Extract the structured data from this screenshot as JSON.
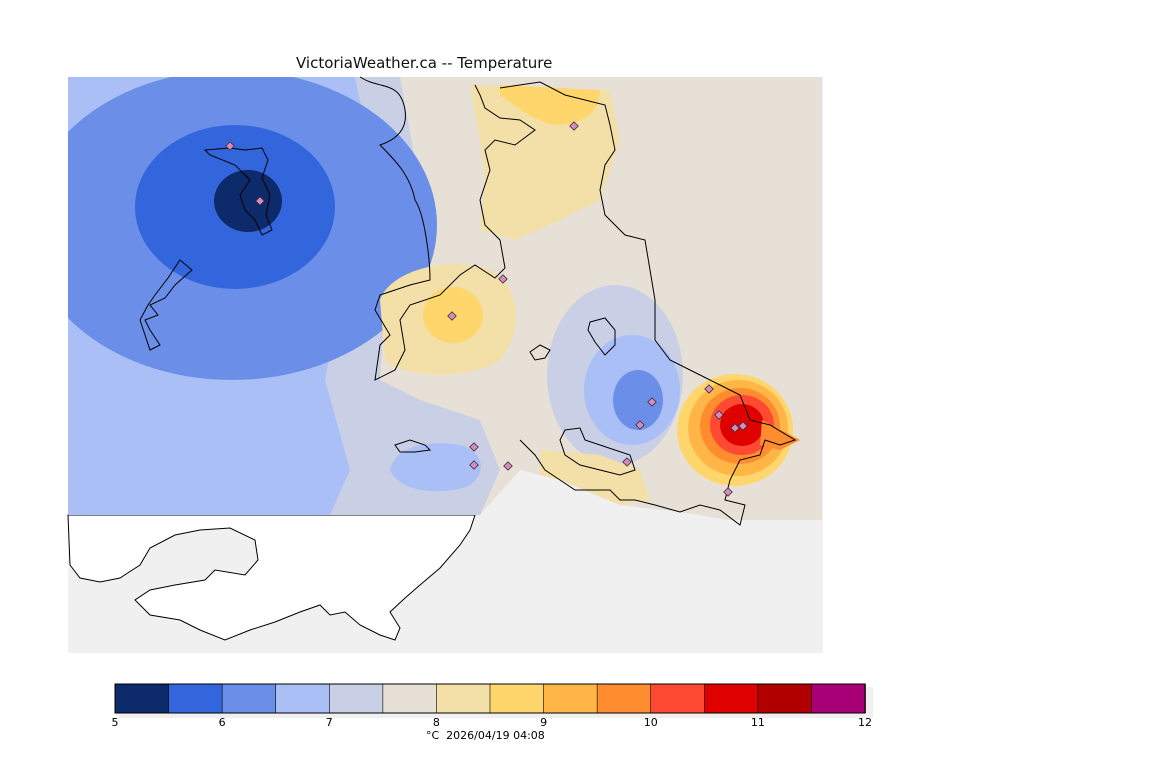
{
  "title": "VictoriaWeather.ca -- Temperature",
  "caption": "°C  2026/04/19 04:08",
  "legend": {
    "min": 5,
    "max": 12,
    "tick_labels": [
      "5",
      "6",
      "7",
      "8",
      "9",
      "10",
      "11",
      "12"
    ],
    "colors": [
      "#0d2a6b",
      "#3366dd",
      "#6b8fe8",
      "#a9bff5",
      "#c9d0e6",
      "#e7e0d6",
      "#f3dfa8",
      "#ffd66b",
      "#ffb647",
      "#ff8c2f",
      "#fe4a32",
      "#df0000",
      "#b00000",
      "#aa0077"
    ]
  },
  "map": {
    "land_color": "#f0f0f0",
    "water_color": "#ffffff",
    "stations": 16
  }
}
